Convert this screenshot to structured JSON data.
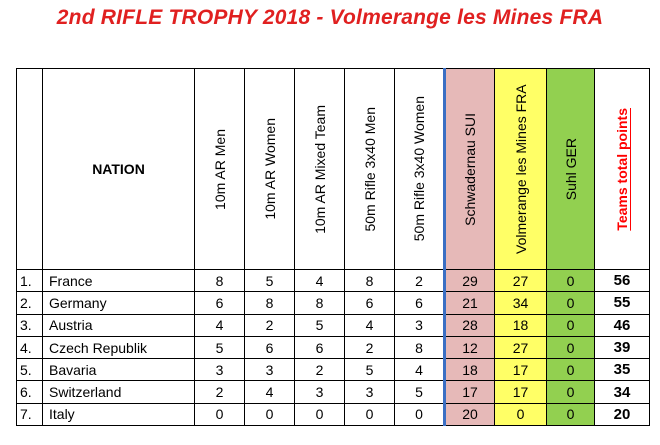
{
  "title": "2nd RIFLE TROPHY 2018 - Volmerange les Mines FRA",
  "headers": {
    "nation": "NATION",
    "events": [
      "10m AR Men",
      "10m AR Women",
      "10m AR Mixed Team",
      "50m Rifle 3x40 Men",
      "50m Rifle 3x40 Women"
    ],
    "venues": [
      "Schwadernau SUI",
      "Volmerange les Mines FRA",
      "Suhl GER"
    ],
    "total": "Teams total points"
  },
  "colors": {
    "title": "#e02020",
    "schwadernau": "#e6b9b8",
    "volmerange": "#ffff66",
    "suhl": "#92d050",
    "total_header": "#ff0000",
    "divider": "#3a6fc4"
  },
  "rows": [
    {
      "rank": "1.",
      "nation": "France",
      "events": [
        "8",
        "5",
        "4",
        "8",
        "2"
      ],
      "venues": [
        "29",
        "27",
        "0"
      ],
      "total": "56"
    },
    {
      "rank": "2.",
      "nation": "Germany",
      "events": [
        "6",
        "8",
        "8",
        "6",
        "6"
      ],
      "venues": [
        "21",
        "34",
        "0"
      ],
      "total": "55"
    },
    {
      "rank": "3.",
      "nation": "Austria",
      "events": [
        "4",
        "2",
        "5",
        "4",
        "3"
      ],
      "venues": [
        "28",
        "18",
        "0"
      ],
      "total": "46"
    },
    {
      "rank": "4.",
      "nation": "Czech Republik",
      "events": [
        "5",
        "6",
        "6",
        "2",
        "8"
      ],
      "venues": [
        "12",
        "27",
        "0"
      ],
      "total": "39"
    },
    {
      "rank": "5.",
      "nation": "Bavaria",
      "events": [
        "3",
        "3",
        "2",
        "5",
        "4"
      ],
      "venues": [
        "18",
        "17",
        "0"
      ],
      "total": "35"
    },
    {
      "rank": "6.",
      "nation": "Switzerland",
      "events": [
        "2",
        "4",
        "3",
        "3",
        "5"
      ],
      "venues": [
        "17",
        "17",
        "0"
      ],
      "total": "34"
    },
    {
      "rank": "7.",
      "nation": "Italy",
      "events": [
        "0",
        "0",
        "0",
        "0",
        "0"
      ],
      "venues": [
        "20",
        "0",
        "0"
      ],
      "total": "20"
    }
  ]
}
